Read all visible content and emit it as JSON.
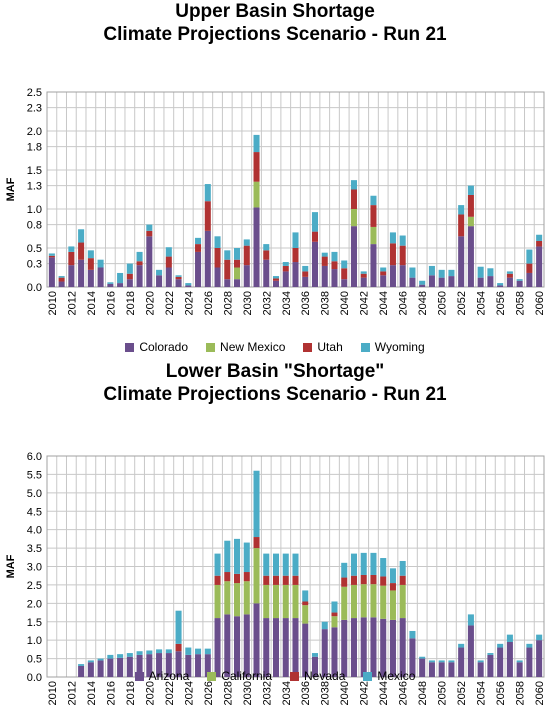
{
  "chart_data": [
    {
      "type": "bar",
      "stacked": true,
      "title_lines": [
        "Upper Basin Shortage",
        "Climate Projections Scenario - Run 21"
      ],
      "ylabel": "MAF",
      "ylim": [
        0,
        2.5
      ],
      "yticks": [
        "0.0",
        "0.3",
        "0.5",
        "0.8",
        "1.0",
        "1.3",
        "1.5",
        "1.8",
        "2.0",
        "2.3",
        "2.5"
      ],
      "grid": true,
      "legend_position": "bottom",
      "x": [
        2010,
        2011,
        2012,
        2013,
        2014,
        2015,
        2016,
        2017,
        2018,
        2019,
        2020,
        2021,
        2022,
        2023,
        2024,
        2025,
        2026,
        2027,
        2028,
        2029,
        2030,
        2031,
        2032,
        2033,
        2034,
        2035,
        2036,
        2037,
        2038,
        2039,
        2040,
        2041,
        2042,
        2043,
        2044,
        2045,
        2046,
        2047,
        2048,
        2049,
        2050,
        2051,
        2052,
        2053,
        2054,
        2055,
        2056,
        2057,
        2058,
        2059,
        2060
      ],
      "xtick_labels": [
        "2010",
        "2012",
        "2014",
        "2016",
        "2018",
        "2020",
        "2022",
        "2024",
        "2026",
        "2028",
        "2030",
        "2032",
        "2034",
        "2036",
        "2038",
        "2040",
        "2042",
        "2044",
        "2046",
        "2048",
        "2050",
        "2052",
        "2054",
        "2056",
        "2058",
        "2060"
      ],
      "series": [
        {
          "name": "Colorado",
          "color": "#6a4e8c",
          "values": [
            0.38,
            0.07,
            0.28,
            0.35,
            0.22,
            0.25,
            0.04,
            0.05,
            0.1,
            0.28,
            0.65,
            0.15,
            0.25,
            0.1,
            0.02,
            0.45,
            0.72,
            0.25,
            0.1,
            0.1,
            0.28,
            1.02,
            0.35,
            0.08,
            0.2,
            0.32,
            0.13,
            0.58,
            0.27,
            0.23,
            0.1,
            0.78,
            0.12,
            0.55,
            0.15,
            0.28,
            0.28,
            0.12,
            0.03,
            0.15,
            0.12,
            0.14,
            0.65,
            0.78,
            0.12,
            0.14,
            0.02,
            0.12,
            0.08,
            0.18,
            0.52
          ]
        },
        {
          "name": "New Mexico",
          "color": "#9bbb59",
          "values": [
            0,
            0,
            0,
            0,
            0,
            0,
            0,
            0,
            0,
            0,
            0,
            0,
            0,
            0,
            0,
            0,
            0,
            0,
            0,
            0.15,
            0,
            0.33,
            0,
            0,
            0,
            0,
            0,
            0,
            0,
            0,
            0,
            0.22,
            0,
            0.22,
            0,
            0,
            0,
            0,
            0,
            0,
            0,
            0,
            0,
            0.12,
            0,
            0,
            0,
            0,
            0,
            0,
            0
          ]
        },
        {
          "name": "Utah",
          "color": "#b03232",
          "values": [
            0.02,
            0.05,
            0.17,
            0.22,
            0.15,
            0,
            0,
            0,
            0.07,
            0.05,
            0.07,
            0,
            0.14,
            0.03,
            0,
            0.1,
            0.38,
            0.25,
            0.25,
            0.1,
            0.25,
            0.38,
            0.12,
            0.03,
            0.07,
            0.18,
            0.07,
            0.13,
            0.12,
            0.1,
            0.14,
            0.25,
            0.05,
            0.28,
            0.05,
            0.28,
            0.25,
            0,
            0,
            0,
            0,
            0,
            0.28,
            0.28,
            0,
            0,
            0,
            0.05,
            0,
            0.12,
            0.07
          ]
        },
        {
          "name": "Wyoming",
          "color": "#4bacc6",
          "values": [
            0.03,
            0.02,
            0.07,
            0.17,
            0.1,
            0.1,
            0.02,
            0.13,
            0.13,
            0.12,
            0.08,
            0.07,
            0.12,
            0.02,
            0.03,
            0.08,
            0.22,
            0.15,
            0.12,
            0.15,
            0.08,
            0.22,
            0.08,
            0.03,
            0.05,
            0.2,
            0.07,
            0.25,
            0.05,
            0.12,
            0.1,
            0.12,
            0.03,
            0.12,
            0.05,
            0.14,
            0.13,
            0.13,
            0.05,
            0.12,
            0.1,
            0.08,
            0.12,
            0.12,
            0.14,
            0.1,
            0.03,
            0.03,
            0.02,
            0.18,
            0.08
          ]
        }
      ]
    },
    {
      "type": "bar",
      "stacked": true,
      "title_lines": [
        "Lower Basin \"Shortage\"",
        "Climate Projections Scenario - Run 21"
      ],
      "ylabel": "MAF",
      "ylim": [
        0,
        6.0
      ],
      "yticks": [
        "0.0",
        "0.5",
        "1.0",
        "1.5",
        "2.0",
        "2.5",
        "3.0",
        "3.5",
        "4.0",
        "4.5",
        "5.0",
        "5.5",
        "6.0"
      ],
      "grid": true,
      "legend_position": "bottom",
      "x": [
        2010,
        2011,
        2012,
        2013,
        2014,
        2015,
        2016,
        2017,
        2018,
        2019,
        2020,
        2021,
        2022,
        2023,
        2024,
        2025,
        2026,
        2027,
        2028,
        2029,
        2030,
        2031,
        2032,
        2033,
        2034,
        2035,
        2036,
        2037,
        2038,
        2039,
        2040,
        2041,
        2042,
        2043,
        2044,
        2045,
        2046,
        2047,
        2048,
        2049,
        2050,
        2051,
        2052,
        2053,
        2054,
        2055,
        2056,
        2057,
        2058,
        2059,
        2060
      ],
      "xtick_labels": [
        "2010",
        "2012",
        "2014",
        "2016",
        "2018",
        "2020",
        "2022",
        "2024",
        "2026",
        "2028",
        "2030",
        "2032",
        "2034",
        "2036",
        "2038",
        "2040",
        "2042",
        "2044",
        "2046",
        "2048",
        "2050",
        "2052",
        "2054",
        "2056",
        "2058",
        "2060"
      ],
      "series": [
        {
          "name": "Arizona",
          "color": "#6a4e8c",
          "values": [
            0,
            0,
            0,
            0.3,
            0.4,
            0.45,
            0.5,
            0.52,
            0.55,
            0.6,
            0.62,
            0.65,
            0.65,
            0.7,
            0.6,
            0.62,
            0.62,
            1.6,
            1.7,
            1.65,
            1.7,
            2.0,
            1.6,
            1.6,
            1.6,
            1.6,
            1.45,
            0.55,
            1.3,
            1.35,
            1.55,
            1.6,
            1.62,
            1.62,
            1.58,
            1.55,
            1.6,
            1.05,
            0.5,
            0.4,
            0.4,
            0.4,
            0.8,
            1.4,
            0.4,
            0.6,
            0.8,
            0.95,
            0.4,
            0.8,
            1.0
          ]
        },
        {
          "name": "California",
          "color": "#9bbb59",
          "values": [
            0,
            0,
            0,
            0,
            0,
            0,
            0,
            0,
            0,
            0,
            0,
            0,
            0,
            0,
            0,
            0,
            0,
            0.9,
            0.9,
            0.9,
            0.9,
            1.5,
            0.9,
            0.9,
            0.9,
            0.9,
            0.5,
            0,
            0,
            0.3,
            0.9,
            0.9,
            0.9,
            0.9,
            0.9,
            0.8,
            0.9,
            0,
            0,
            0,
            0,
            0,
            0,
            0,
            0,
            0,
            0,
            0,
            0,
            0,
            0
          ]
        },
        {
          "name": "Nevada",
          "color": "#b03232",
          "values": [
            0,
            0,
            0,
            0,
            0,
            0,
            0,
            0,
            0,
            0,
            0,
            0,
            0,
            0.2,
            0,
            0,
            0,
            0.25,
            0.25,
            0.25,
            0.25,
            0.3,
            0.25,
            0.25,
            0.25,
            0.25,
            0.1,
            0,
            0,
            0.1,
            0.25,
            0.25,
            0.25,
            0.25,
            0.25,
            0.2,
            0.25,
            0,
            0,
            0,
            0,
            0,
            0,
            0,
            0,
            0,
            0,
            0,
            0,
            0,
            0
          ]
        },
        {
          "name": "Mexico",
          "color": "#4bacc6",
          "values": [
            0,
            0,
            0,
            0.05,
            0.05,
            0.05,
            0.1,
            0.1,
            0.1,
            0.1,
            0.1,
            0.1,
            0.1,
            0.9,
            0.2,
            0.15,
            0.15,
            0.6,
            0.85,
            0.95,
            0.8,
            1.8,
            0.6,
            0.6,
            0.6,
            0.6,
            0.3,
            0.1,
            0.2,
            0.3,
            0.4,
            0.6,
            0.6,
            0.6,
            0.5,
            0.4,
            0.4,
            0.2,
            0.05,
            0.05,
            0.05,
            0.05,
            0.1,
            0.3,
            0.05,
            0.05,
            0.1,
            0.2,
            0.05,
            0.1,
            0.15
          ]
        }
      ]
    }
  ]
}
